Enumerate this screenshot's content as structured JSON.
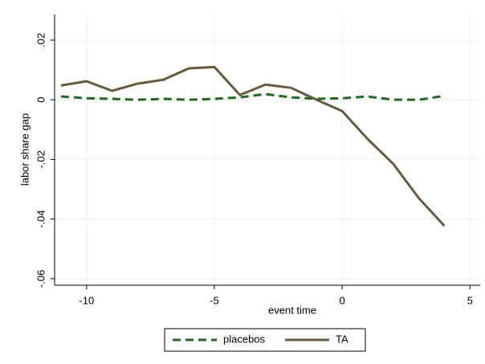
{
  "chart_data": {
    "type": "line",
    "x": [
      -11,
      -10,
      -9,
      -8,
      -7,
      -6,
      -5,
      -4,
      -3,
      -2,
      -1,
      0,
      1,
      2,
      3,
      4
    ],
    "series": [
      {
        "name": "placebos",
        "color": "#1a6e1a",
        "dash": true,
        "values": [
          0.0011,
          0.0005,
          0.0003,
          0.0,
          0.0003,
          0.0,
          0.0003,
          0.0008,
          0.0019,
          0.0008,
          0.0003,
          0.0005,
          0.0011,
          0.0,
          0.0,
          0.0013
        ]
      },
      {
        "name": "TA",
        "color": "#6b5a3a",
        "dash": false,
        "values": [
          0.0048,
          0.0062,
          0.003,
          0.0054,
          0.0067,
          0.0105,
          0.011,
          0.0016,
          0.0051,
          0.004,
          0.0,
          -0.0038,
          -0.0132,
          -0.0215,
          -0.033,
          -0.0423
        ]
      }
    ],
    "xlabel": "event time",
    "ylabel": "labor share gap",
    "xlim": [
      -11.25,
      5.4
    ],
    "ylim": [
      -0.0622,
      0.0286
    ],
    "xticks": [
      -10,
      -5,
      0,
      5
    ],
    "yticks": [
      {
        "value": 0.02,
        "label": ".02"
      },
      0,
      {
        "value": -0.02,
        "label": "-.02"
      },
      {
        "value": -0.04,
        "label": "-.04"
      },
      {
        "value": -0.06,
        "label": "-.06"
      }
    ],
    "grid": true
  }
}
